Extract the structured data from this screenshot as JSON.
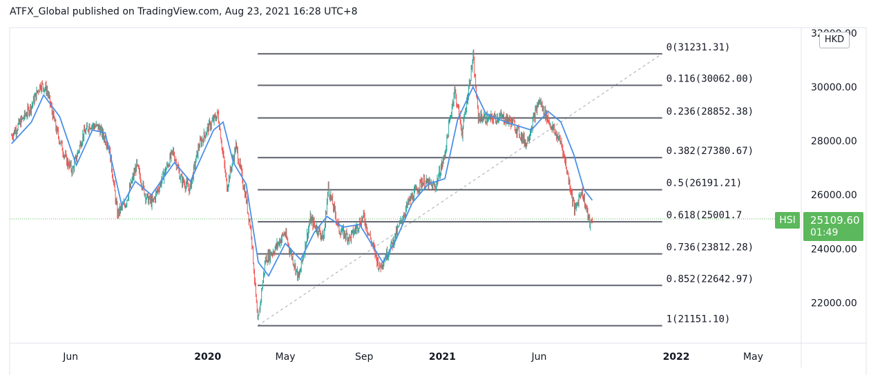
{
  "attribution": "ATFX_Global published on TradingView.com, Aug 23, 2021 16:28 UTC+8",
  "currency": "HKD",
  "symbol": "HSI",
  "last_price": "25109.60",
  "countdown": "01:49",
  "colors": {
    "up": "#26a69a",
    "down": "#ef5350",
    "moving_average": "#2962ff",
    "fib_line": "#5d606b",
    "trend_line": "#b2b5be",
    "price_tag": "#5cb85c"
  },
  "chart_data": {
    "type": "line",
    "series": [
      {
        "type": "candlestick",
        "values": [
          [
            "2019-03-01",
            28200
          ],
          [
            "2019-03-15",
            28700
          ],
          [
            "2019-04-01",
            29300
          ],
          [
            "2019-04-15",
            30100
          ],
          [
            "2019-04-25",
            29900
          ],
          [
            "2019-05-10",
            28400
          ],
          [
            "2019-05-25",
            27300
          ],
          [
            "2019-06-04",
            26900
          ],
          [
            "2019-06-20",
            28200
          ],
          [
            "2019-07-01",
            28600
          ],
          [
            "2019-07-15",
            28500
          ],
          [
            "2019-07-31",
            27800
          ],
          [
            "2019-08-13",
            25300
          ],
          [
            "2019-08-26",
            25700
          ],
          [
            "2019-09-12",
            27100
          ],
          [
            "2019-09-27",
            25900
          ],
          [
            "2019-10-07",
            25700
          ],
          [
            "2019-10-25",
            26800
          ],
          [
            "2019-11-08",
            27600
          ],
          [
            "2019-11-20",
            26600
          ],
          [
            "2019-12-04",
            26200
          ],
          [
            "2019-12-18",
            27800
          ],
          [
            "2020-01-02",
            28500
          ],
          [
            "2020-01-17",
            29000
          ],
          [
            "2020-01-31",
            26300
          ],
          [
            "2020-02-14",
            27800
          ],
          [
            "2020-02-28",
            26100
          ],
          [
            "2020-03-09",
            24600
          ],
          [
            "2020-03-19",
            21200
          ],
          [
            "2020-03-31",
            23600
          ],
          [
            "2020-04-15",
            24000
          ],
          [
            "2020-04-30",
            24600
          ],
          [
            "2020-05-22",
            22900
          ],
          [
            "2020-06-09",
            25100
          ],
          [
            "2020-06-30",
            24400
          ],
          [
            "2020-07-07",
            26300
          ],
          [
            "2020-07-24",
            24700
          ],
          [
            "2020-08-10",
            24400
          ],
          [
            "2020-08-31",
            25200
          ],
          [
            "2020-09-25",
            23300
          ],
          [
            "2020-10-15",
            24200
          ],
          [
            "2020-11-09",
            25700
          ],
          [
            "2020-11-30",
            26500
          ],
          [
            "2020-12-21",
            26300
          ],
          [
            "2021-01-04",
            27400
          ],
          [
            "2021-01-20",
            29900
          ],
          [
            "2021-02-01",
            28300
          ],
          [
            "2021-02-18",
            31100
          ],
          [
            "2021-02-26",
            28900
          ],
          [
            "2021-03-15",
            28800
          ],
          [
            "2021-04-01",
            28900
          ],
          [
            "2021-04-20",
            28700
          ],
          [
            "2021-05-12",
            27900
          ],
          [
            "2021-06-01",
            29500
          ],
          [
            "2021-06-21",
            28500
          ],
          [
            "2021-07-06",
            27900
          ],
          [
            "2021-07-27",
            25400
          ],
          [
            "2021-08-06",
            26200
          ],
          [
            "2021-08-20",
            24849
          ],
          [
            "2021-08-23",
            25109.6
          ]
        ]
      },
      {
        "type": "moving_average",
        "values": [
          [
            "2019-03-01",
            27900
          ],
          [
            "2019-04-01",
            28700
          ],
          [
            "2019-04-20",
            29700
          ],
          [
            "2019-05-15",
            28900
          ],
          [
            "2019-06-10",
            27100
          ],
          [
            "2019-07-05",
            28400
          ],
          [
            "2019-07-25",
            28300
          ],
          [
            "2019-08-20",
            25600
          ],
          [
            "2019-09-10",
            26500
          ],
          [
            "2019-10-05",
            26000
          ],
          [
            "2019-11-10",
            27200
          ],
          [
            "2019-12-05",
            26500
          ],
          [
            "2020-01-10",
            28400
          ],
          [
            "2020-01-25",
            28700
          ],
          [
            "2020-02-10",
            27200
          ],
          [
            "2020-03-01",
            26400
          ],
          [
            "2020-03-20",
            23500
          ],
          [
            "2020-04-05",
            23000
          ],
          [
            "2020-05-01",
            24200
          ],
          [
            "2020-05-25",
            23600
          ],
          [
            "2020-06-15",
            24600
          ],
          [
            "2020-07-05",
            25200
          ],
          [
            "2020-07-30",
            24800
          ],
          [
            "2020-08-25",
            24900
          ],
          [
            "2020-09-30",
            23500
          ],
          [
            "2020-10-20",
            24300
          ],
          [
            "2020-11-15",
            25700
          ],
          [
            "2020-12-10",
            26400
          ],
          [
            "2021-01-05",
            26600
          ],
          [
            "2021-01-25",
            28800
          ],
          [
            "2021-02-18",
            30000
          ],
          [
            "2021-03-10",
            29000
          ],
          [
            "2021-04-10",
            28700
          ],
          [
            "2021-05-20",
            28400
          ],
          [
            "2021-06-15",
            29100
          ],
          [
            "2021-07-05",
            28700
          ],
          [
            "2021-07-25",
            27500
          ],
          [
            "2021-08-10",
            26200
          ],
          [
            "2021-08-23",
            25800
          ]
        ]
      }
    ],
    "x_ticks": [
      {
        "date": "2019-06-01",
        "label": "Jun",
        "bold": false
      },
      {
        "date": "2020-01-01",
        "label": "2020",
        "bold": true
      },
      {
        "date": "2020-05-01",
        "label": "May",
        "bold": false
      },
      {
        "date": "2020-09-01",
        "label": "Sep",
        "bold": false
      },
      {
        "date": "2021-01-01",
        "label": "2021",
        "bold": true
      },
      {
        "date": "2021-06-01",
        "label": "Jun",
        "bold": false
      },
      {
        "date": "2022-01-01",
        "label": "2022",
        "bold": true
      },
      {
        "date": "2022-05-01",
        "label": "May",
        "bold": false
      }
    ],
    "y_ticks": [
      {
        "value": 22000,
        "label": "22000.00"
      },
      {
        "value": 24000,
        "label": "24000.00"
      },
      {
        "value": 26000,
        "label": "26000.00"
      },
      {
        "value": 28000,
        "label": "28000.00"
      },
      {
        "value": 30000,
        "label": "30000.00"
      },
      {
        "value": 32000,
        "label": "32000.00"
      }
    ],
    "y_range": [
      20500,
      32200
    ],
    "x_range": [
      "2019-02-26",
      "2022-07-15"
    ],
    "fib_retracement": {
      "start": {
        "date": "2020-03-19",
        "value": 21151.1
      },
      "end": {
        "date": "2021-12-10",
        "value": 31231.31
      },
      "levels": [
        {
          "label": "0(31231.31)",
          "value": 31231.31
        },
        {
          "label": "0.116(30062.00)",
          "value": 30062.0
        },
        {
          "label": "0.236(28852.38)",
          "value": 28852.38
        },
        {
          "label": "0.382(27380.67)",
          "value": 27380.67
        },
        {
          "label": "0.5(26191.21)",
          "value": 26191.21
        },
        {
          "label": "0.618(25001.7",
          "value": 25001.7
        },
        {
          "label": "0.736(23812.28)",
          "value": 23812.28
        },
        {
          "label": "0.852(22642.97)",
          "value": 22642.97
        },
        {
          "label": "1(21151.10)",
          "value": 21151.1
        }
      ]
    },
    "last_price": 25109.6,
    "grid": false,
    "legend": "none"
  }
}
